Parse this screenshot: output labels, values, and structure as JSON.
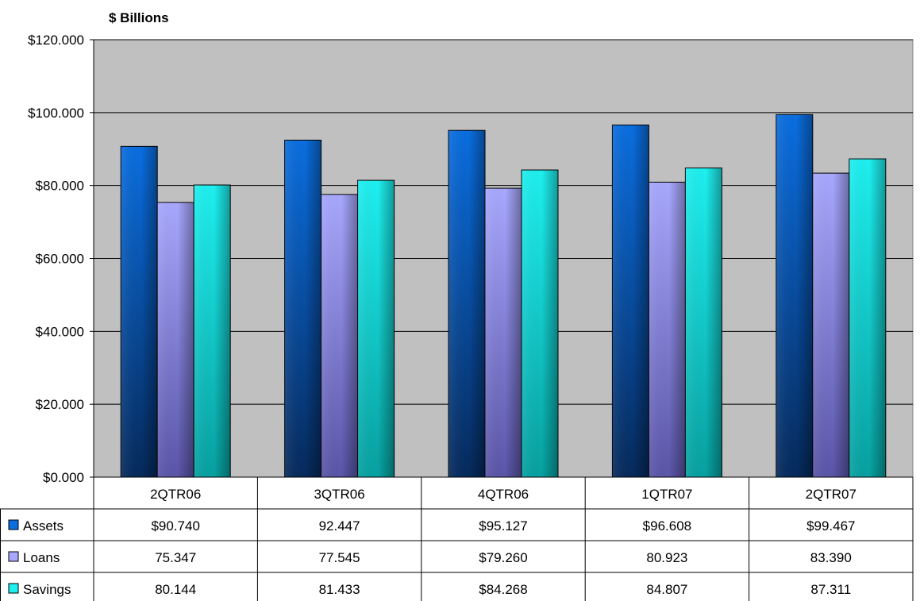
{
  "chart_data": {
    "type": "bar",
    "ylabel": "$ Billions",
    "ylim": [
      0,
      120
    ],
    "ytick_values": [
      0,
      20,
      40,
      60,
      80,
      100,
      120
    ],
    "ytick_labels": [
      "$0.000",
      "$20.000",
      "$40.000",
      "$60.000",
      "$80.000",
      "$100.000",
      "$120.000"
    ],
    "categories": [
      "2QTR06",
      "3QTR06",
      "4QTR06",
      "1QTR07",
      "2QTR07"
    ],
    "grid": true,
    "plot_background": "#c0c0c0",
    "series": [
      {
        "name": "Assets",
        "values": [
          90.74,
          92.447,
          95.127,
          96.608,
          99.467
        ],
        "table_labels": [
          "$90.740",
          "92.447",
          "$95.127",
          "$96.608",
          "$99.467"
        ],
        "color_light": "#0a6ee0",
        "color_dark": "#062a5c"
      },
      {
        "name": "Loans",
        "values": [
          75.347,
          77.545,
          79.26,
          80.923,
          83.39
        ],
        "table_labels": [
          "75.347",
          "77.545",
          "$79.260",
          "80.923",
          "83.390"
        ],
        "color_light": "#a8a8ff",
        "color_dark": "#5a55a8"
      },
      {
        "name": "Savings",
        "values": [
          80.144,
          81.433,
          84.268,
          84.807,
          87.311
        ],
        "table_labels": [
          "80.144",
          "81.433",
          "$84.268",
          "84.807",
          "87.311"
        ],
        "color_light": "#1ef0f0",
        "color_dark": "#07a0a0"
      }
    ]
  }
}
